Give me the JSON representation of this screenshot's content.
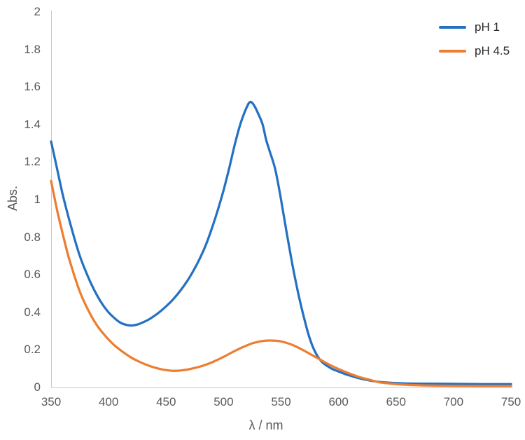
{
  "chart_data": {
    "type": "line",
    "title": "",
    "xlabel": "λ / nm",
    "ylabel": "Abs.",
    "xlim": [
      350,
      750
    ],
    "ylim": [
      0,
      2
    ],
    "grid": false,
    "legend_position": "top-right",
    "background_color": "#ffffff",
    "axis_color": "#c9c9c9",
    "tick_label_color": "#595959",
    "xticks": {
      "values": [
        350,
        400,
        450,
        500,
        550,
        600,
        650,
        700,
        750
      ],
      "labels": [
        "350",
        "400",
        "450",
        "500",
        "550",
        "600",
        "650",
        "700",
        "750"
      ]
    },
    "yticks": {
      "values": [
        0,
        0.2,
        0.4,
        0.6,
        0.8,
        1,
        1.2,
        1.4,
        1.6,
        1.8,
        2
      ],
      "labels": [
        "0",
        "0.2",
        "0.4",
        "0.6",
        "0.8",
        "1",
        "1.2",
        "1.4",
        "1.6",
        "1.8",
        "2"
      ]
    },
    "series": [
      {
        "name": "pH 1",
        "color": "#2471c2",
        "points": [
          [
            350,
            1.31
          ],
          [
            355,
            1.17
          ],
          [
            360,
            1.03
          ],
          [
            365,
            0.91
          ],
          [
            370,
            0.8
          ],
          [
            375,
            0.7
          ],
          [
            380,
            0.62
          ],
          [
            385,
            0.55
          ],
          [
            390,
            0.49
          ],
          [
            395,
            0.44
          ],
          [
            400,
            0.4
          ],
          [
            405,
            0.37
          ],
          [
            410,
            0.346
          ],
          [
            415,
            0.334
          ],
          [
            420,
            0.33
          ],
          [
            425,
            0.335
          ],
          [
            430,
            0.347
          ],
          [
            435,
            0.362
          ],
          [
            440,
            0.382
          ],
          [
            445,
            0.405
          ],
          [
            450,
            0.432
          ],
          [
            455,
            0.462
          ],
          [
            460,
            0.497
          ],
          [
            465,
            0.537
          ],
          [
            470,
            0.582
          ],
          [
            475,
            0.635
          ],
          [
            480,
            0.695
          ],
          [
            485,
            0.765
          ],
          [
            490,
            0.85
          ],
          [
            495,
            0.945
          ],
          [
            500,
            1.05
          ],
          [
            505,
            1.17
          ],
          [
            510,
            1.3
          ],
          [
            515,
            1.41
          ],
          [
            520,
            1.49
          ],
          [
            523,
            1.52
          ],
          [
            526,
            1.507
          ],
          [
            530,
            1.46
          ],
          [
            534,
            1.4
          ],
          [
            537,
            1.32
          ],
          [
            540,
            1.26
          ],
          [
            545,
            1.16
          ],
          [
            550,
            1.0
          ],
          [
            555,
            0.82
          ],
          [
            560,
            0.65
          ],
          [
            565,
            0.5
          ],
          [
            570,
            0.37
          ],
          [
            575,
            0.26
          ],
          [
            580,
            0.185
          ],
          [
            585,
            0.14
          ],
          [
            590,
            0.115
          ],
          [
            595,
            0.097
          ],
          [
            600,
            0.085
          ],
          [
            605,
            0.073
          ],
          [
            610,
            0.063
          ],
          [
            615,
            0.054
          ],
          [
            620,
            0.046
          ],
          [
            625,
            0.04
          ],
          [
            630,
            0.034
          ],
          [
            635,
            0.03
          ],
          [
            640,
            0.027
          ],
          [
            650,
            0.023
          ],
          [
            660,
            0.021
          ],
          [
            675,
            0.02
          ],
          [
            700,
            0.019
          ],
          [
            725,
            0.018
          ],
          [
            750,
            0.018
          ]
        ]
      },
      {
        "name": "pH 4.5",
        "color": "#ed7d31",
        "points": [
          [
            350,
            1.1
          ],
          [
            355,
            0.95
          ],
          [
            360,
            0.82
          ],
          [
            365,
            0.7
          ],
          [
            370,
            0.6
          ],
          [
            375,
            0.51
          ],
          [
            380,
            0.44
          ],
          [
            385,
            0.38
          ],
          [
            390,
            0.33
          ],
          [
            395,
            0.29
          ],
          [
            400,
            0.255
          ],
          [
            405,
            0.225
          ],
          [
            410,
            0.2
          ],
          [
            415,
            0.178
          ],
          [
            420,
            0.158
          ],
          [
            425,
            0.142
          ],
          [
            430,
            0.128
          ],
          [
            435,
            0.116
          ],
          [
            440,
            0.106
          ],
          [
            445,
            0.098
          ],
          [
            450,
            0.092
          ],
          [
            455,
            0.089
          ],
          [
            460,
            0.089
          ],
          [
            465,
            0.092
          ],
          [
            470,
            0.097
          ],
          [
            475,
            0.104
          ],
          [
            480,
            0.112
          ],
          [
            485,
            0.122
          ],
          [
            490,
            0.134
          ],
          [
            495,
            0.148
          ],
          [
            500,
            0.163
          ],
          [
            505,
            0.179
          ],
          [
            510,
            0.195
          ],
          [
            515,
            0.21
          ],
          [
            520,
            0.223
          ],
          [
            525,
            0.235
          ],
          [
            530,
            0.243
          ],
          [
            535,
            0.248
          ],
          [
            540,
            0.25
          ],
          [
            545,
            0.249
          ],
          [
            550,
            0.245
          ],
          [
            555,
            0.237
          ],
          [
            560,
            0.226
          ],
          [
            565,
            0.212
          ],
          [
            570,
            0.196
          ],
          [
            575,
            0.179
          ],
          [
            580,
            0.162
          ],
          [
            585,
            0.145
          ],
          [
            590,
            0.128
          ],
          [
            595,
            0.112
          ],
          [
            600,
            0.098
          ],
          [
            605,
            0.085
          ],
          [
            610,
            0.073
          ],
          [
            615,
            0.062
          ],
          [
            620,
            0.052
          ],
          [
            625,
            0.044
          ],
          [
            630,
            0.036
          ],
          [
            635,
            0.028
          ],
          [
            640,
            0.024
          ],
          [
            645,
            0.021
          ],
          [
            650,
            0.018
          ],
          [
            660,
            0.014
          ],
          [
            675,
            0.011
          ],
          [
            700,
            0.009
          ],
          [
            725,
            0.008
          ],
          [
            750,
            0.008
          ]
        ]
      }
    ]
  }
}
